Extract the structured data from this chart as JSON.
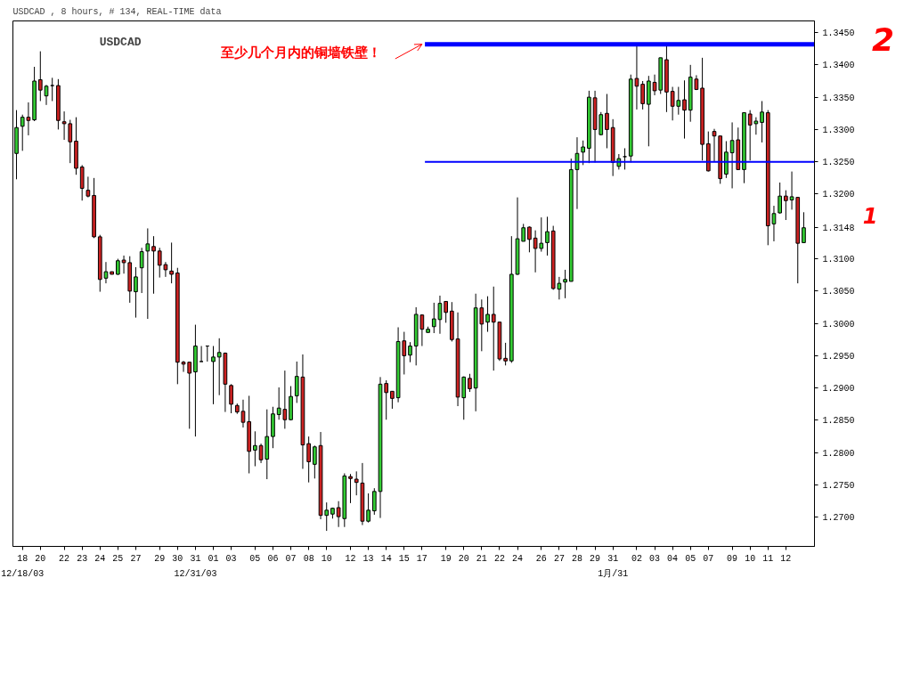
{
  "chart_data": {
    "type": "candlestick",
    "title": "USDCAD",
    "subtitle": "USDCAD , 8 hours, # 134, REAL-TIME data",
    "categories": [
      null,
      "18",
      null,
      null,
      "20",
      null,
      null,
      null,
      "22",
      null,
      null,
      "23",
      null,
      null,
      "24",
      null,
      null,
      "25",
      null,
      null,
      "27",
      null,
      null,
      null,
      "29",
      null,
      null,
      "30",
      null,
      null,
      "31",
      null,
      null,
      "01",
      null,
      null,
      "03",
      null,
      null,
      null,
      "05",
      null,
      null,
      "06",
      null,
      null,
      "07",
      null,
      null,
      "08",
      null,
      null,
      "10",
      null,
      null,
      null,
      "12",
      null,
      null,
      "13",
      null,
      null,
      "14",
      null,
      null,
      "15",
      null,
      null,
      "17",
      null,
      null,
      null,
      "19",
      null,
      null,
      "20",
      null,
      null,
      "21",
      null,
      null,
      "22",
      null,
      null,
      "24",
      null,
      null,
      null,
      "26",
      null,
      null,
      "27",
      null,
      null,
      "28",
      null,
      null,
      "29",
      null,
      null,
      "31",
      null,
      null,
      null,
      "02",
      null,
      null,
      "03",
      null,
      null,
      "04",
      null,
      null,
      "05",
      null,
      null,
      "07",
      null,
      null,
      null,
      "09",
      null,
      null,
      "10",
      null,
      null,
      "11",
      null,
      null,
      "12",
      null,
      null,
      null
    ],
    "ohlc": [
      [
        1.3263,
        1.333,
        1.3223,
        1.3303
      ],
      [
        1.3305,
        1.3323,
        1.3267,
        1.3319
      ],
      [
        1.3319,
        1.3342,
        1.3291,
        1.3314
      ],
      [
        1.3315,
        1.3397,
        1.3313,
        1.3375
      ],
      [
        1.3377,
        1.3421,
        1.3344,
        1.3361
      ],
      [
        1.3352,
        1.3369,
        1.3338,
        1.3367
      ],
      [
        1.3368,
        1.338,
        1.3344,
        1.3368
      ],
      [
        1.3368,
        1.3378,
        1.33,
        1.3314
      ],
      [
        1.3312,
        1.3328,
        1.3284,
        1.3309
      ],
      [
        1.3309,
        1.3315,
        1.3248,
        1.3281
      ],
      [
        1.3282,
        1.3319,
        1.323,
        1.324
      ],
      [
        1.3242,
        1.3245,
        1.319,
        1.3209
      ],
      [
        1.3206,
        1.3227,
        1.3195,
        1.3197
      ],
      [
        1.3198,
        1.3225,
        1.3132,
        1.3134
      ],
      [
        1.3134,
        1.3137,
        1.3049,
        1.3068
      ],
      [
        1.307,
        1.3095,
        1.3062,
        1.308
      ],
      [
        1.308,
        1.308,
        1.3076,
        1.3076
      ],
      [
        1.3076,
        1.31,
        1.3075,
        1.3097
      ],
      [
        1.3098,
        1.3105,
        1.3077,
        1.3094
      ],
      [
        1.3094,
        1.3104,
        1.3032,
        1.305
      ],
      [
        1.3049,
        1.3087,
        1.3009,
        1.3072
      ],
      [
        1.3086,
        1.3117,
        1.3047,
        1.3111
      ],
      [
        1.3112,
        1.3147,
        1.3007,
        1.3123
      ],
      [
        1.3119,
        1.3135,
        1.3046,
        1.3112
      ],
      [
        1.3112,
        1.3117,
        1.3071,
        1.309
      ],
      [
        1.3091,
        1.3095,
        1.3072,
        1.3083
      ],
      [
        1.3081,
        1.3125,
        1.3062,
        1.3076
      ],
      [
        1.3078,
        1.3086,
        1.2906,
        1.294
      ],
      [
        1.294,
        1.2942,
        1.2925,
        1.2937
      ],
      [
        1.294,
        1.294,
        1.2837,
        1.2923
      ],
      [
        1.2925,
        1.2998,
        1.2825,
        1.2965
      ],
      [
        1.2941,
        1.2965,
        1.2941,
        1.2941
      ],
      [
        1.2965,
        1.2965,
        1.2941,
        1.2965
      ],
      [
        1.2941,
        1.2965,
        1.2875,
        1.2948
      ],
      [
        1.2948,
        1.2977,
        1.2889,
        1.2955
      ],
      [
        1.2954,
        1.2955,
        1.2863,
        1.2906
      ],
      [
        1.2904,
        1.2906,
        1.2861,
        1.2875
      ],
      [
        1.2873,
        1.2876,
        1.286,
        1.2863
      ],
      [
        1.2864,
        1.2882,
        1.2839,
        1.2847
      ],
      [
        1.2848,
        1.2888,
        1.2768,
        1.2802
      ],
      [
        1.2804,
        1.2833,
        1.2779,
        1.2811
      ],
      [
        1.2811,
        1.2814,
        1.2784,
        1.2789
      ],
      [
        1.279,
        1.2867,
        1.2759,
        1.2825
      ],
      [
        1.2825,
        1.2871,
        1.2807,
        1.286
      ],
      [
        1.2859,
        1.2901,
        1.2851,
        1.2869
      ],
      [
        1.2867,
        1.2927,
        1.2837,
        1.2851
      ],
      [
        1.2851,
        1.2903,
        1.285,
        1.2887
      ],
      [
        1.2888,
        1.2941,
        1.2877,
        1.2918
      ],
      [
        1.2917,
        1.2952,
        1.2775,
        1.2812
      ],
      [
        1.2814,
        1.2825,
        1.2754,
        1.2786
      ],
      [
        1.2782,
        1.2811,
        1.276,
        1.2809
      ],
      [
        1.2811,
        1.2832,
        1.2697,
        1.2703
      ],
      [
        1.2703,
        1.2723,
        1.2679,
        1.2711
      ],
      [
        1.2705,
        1.2715,
        1.2698,
        1.2714
      ],
      [
        1.2715,
        1.2725,
        1.2685,
        1.2701
      ],
      [
        1.2698,
        1.2768,
        1.2685,
        1.2764
      ],
      [
        1.2763,
        1.2767,
        1.2722,
        1.276
      ],
      [
        1.2759,
        1.2771,
        1.2734,
        1.2754
      ],
      [
        1.2753,
        1.2784,
        1.2688,
        1.2694
      ],
      [
        1.2694,
        1.2737,
        1.2692,
        1.2711
      ],
      [
        1.271,
        1.2745,
        1.2704,
        1.274
      ],
      [
        1.274,
        1.2917,
        1.2699,
        1.2906
      ],
      [
        1.2907,
        1.2912,
        1.2851,
        1.2893
      ],
      [
        1.2895,
        1.2895,
        1.2868,
        1.2884
      ],
      [
        1.2885,
        1.2994,
        1.2878,
        1.2972
      ],
      [
        1.2973,
        1.2987,
        1.2921,
        1.295
      ],
      [
        1.2951,
        1.2971,
        1.294,
        1.2965
      ],
      [
        1.2965,
        1.3025,
        1.2935,
        1.3014
      ],
      [
        1.3013,
        1.3014,
        1.2965,
        1.2991
      ],
      [
        1.2986,
        1.2995,
        1.2986,
        1.2991
      ],
      [
        1.2995,
        1.3032,
        1.2985,
        1.3007
      ],
      [
        1.3006,
        1.3043,
        1.2984,
        1.3031
      ],
      [
        1.3034,
        1.3034,
        1.3001,
        1.3017
      ],
      [
        1.3019,
        1.3033,
        1.2972,
        1.2975
      ],
      [
        1.2976,
        1.3017,
        1.2872,
        1.2886
      ],
      [
        1.2885,
        1.2918,
        1.2851,
        1.2917
      ],
      [
        1.2915,
        1.2922,
        1.2894,
        1.2899
      ],
      [
        1.29,
        1.3046,
        1.2864,
        1.3024
      ],
      [
        1.3024,
        1.3037,
        1.2957,
        1.2999
      ],
      [
        1.3002,
        1.3042,
        1.2987,
        1.3014
      ],
      [
        1.3014,
        1.3057,
        1.2927,
        1.3002
      ],
      [
        1.3002,
        1.3002,
        1.2942,
        1.2945
      ],
      [
        1.2946,
        1.297,
        1.2935,
        1.2942
      ],
      [
        1.2942,
        1.3135,
        1.2939,
        1.3076
      ],
      [
        1.3076,
        1.3195,
        1.3075,
        1.3131
      ],
      [
        1.3127,
        1.3154,
        1.3127,
        1.3148
      ],
      [
        1.3149,
        1.315,
        1.311,
        1.313
      ],
      [
        1.3132,
        1.3144,
        1.3079,
        1.3116
      ],
      [
        1.3116,
        1.3164,
        1.3111,
        1.3124
      ],
      [
        1.3125,
        1.3165,
        1.3105,
        1.3142
      ],
      [
        1.3143,
        1.3151,
        1.3052,
        1.3054
      ],
      [
        1.3053,
        1.3072,
        1.3037,
        1.3062
      ],
      [
        1.3064,
        1.3083,
        1.3039,
        1.3068
      ],
      [
        1.3065,
        1.3255,
        1.3065,
        1.3238
      ],
      [
        1.3238,
        1.3288,
        1.3177,
        1.3263
      ],
      [
        1.3265,
        1.3283,
        1.3245,
        1.3273
      ],
      [
        1.3271,
        1.336,
        1.3248,
        1.335
      ],
      [
        1.3349,
        1.336,
        1.3249,
        1.33
      ],
      [
        1.3292,
        1.3327,
        1.3291,
        1.3323
      ],
      [
        1.3325,
        1.3355,
        1.3271,
        1.33
      ],
      [
        1.3303,
        1.3316,
        1.3228,
        1.3249
      ],
      [
        1.3243,
        1.3262,
        1.3238,
        1.3255
      ],
      [
        1.3258,
        1.3271,
        1.3238,
        1.3258
      ],
      [
        1.3259,
        1.3385,
        1.3249,
        1.3378
      ],
      [
        1.3379,
        1.3429,
        1.3331,
        1.3367
      ],
      [
        1.337,
        1.3375,
        1.3331,
        1.334
      ],
      [
        1.3339,
        1.3383,
        1.3274,
        1.3375
      ],
      [
        1.3373,
        1.3385,
        1.3353,
        1.336
      ],
      [
        1.3361,
        1.3411,
        1.3355,
        1.3411
      ],
      [
        1.3408,
        1.3429,
        1.3327,
        1.3358
      ],
      [
        1.3359,
        1.3366,
        1.3314,
        1.3336
      ],
      [
        1.3336,
        1.3366,
        1.3323,
        1.3345
      ],
      [
        1.3346,
        1.3376,
        1.3286,
        1.333
      ],
      [
        1.333,
        1.34,
        1.3312,
        1.3381
      ],
      [
        1.3378,
        1.3384,
        1.3361,
        1.3362
      ],
      [
        1.3364,
        1.3411,
        1.3252,
        1.3277
      ],
      [
        1.3278,
        1.3297,
        1.3235,
        1.3236
      ],
      [
        1.3297,
        1.3301,
        1.3251,
        1.329
      ],
      [
        1.329,
        1.329,
        1.3216,
        1.3224
      ],
      [
        1.3231,
        1.3282,
        1.3225,
        1.3265
      ],
      [
        1.3264,
        1.3311,
        1.3209,
        1.3283
      ],
      [
        1.3284,
        1.3303,
        1.3238,
        1.3238
      ],
      [
        1.3238,
        1.3326,
        1.3217,
        1.3326
      ],
      [
        1.3324,
        1.333,
        1.3252,
        1.3307
      ],
      [
        1.3309,
        1.3319,
        1.3292,
        1.3313
      ],
      [
        1.3311,
        1.3344,
        1.328,
        1.3327
      ],
      [
        1.3326,
        1.333,
        1.3121,
        1.3151
      ],
      [
        1.3154,
        1.3182,
        1.3127,
        1.317
      ],
      [
        1.3171,
        1.3218,
        1.317,
        1.3197
      ],
      [
        1.3197,
        1.3206,
        1.316,
        1.319
      ],
      [
        1.3191,
        1.3235,
        1.3176,
        1.3196
      ],
      [
        1.3195,
        1.3195,
        1.3062,
        1.3124
      ],
      [
        1.3125,
        1.3172,
        1.3125,
        1.3148
      ]
    ],
    "colors": [
      "#33cc33",
      "#33cc33",
      "#cc2222",
      "#33cc33",
      "#cc2222",
      "#33cc33",
      "#000000",
      "#cc2222",
      "#cc2222",
      "#cc2222",
      "#cc2222",
      "#cc2222",
      "#cc2222",
      "#cc2222",
      "#cc2222",
      "#33cc33",
      "#cc2222",
      "#33cc33",
      "#cc2222",
      "#cc2222",
      "#33cc33",
      "#33cc33",
      "#33cc33",
      "#cc2222",
      "#cc2222",
      "#cc2222",
      "#cc2222",
      "#cc2222",
      "#cc2222",
      "#cc2222",
      "#33cc33",
      "#000000",
      "#000000",
      "#33cc33",
      "#33cc33",
      "#cc2222",
      "#cc2222",
      "#cc2222",
      "#cc2222",
      "#cc2222",
      "#33cc33",
      "#cc2222",
      "#33cc33",
      "#33cc33",
      "#33cc33",
      "#cc2222",
      "#33cc33",
      "#33cc33",
      "#cc2222",
      "#cc2222",
      "#33cc33",
      "#cc2222",
      "#33cc33",
      "#33cc33",
      "#cc2222",
      "#33cc33",
      "#cc2222",
      "#cc2222",
      "#cc2222",
      "#33cc33",
      "#33cc33",
      "#33cc33",
      "#cc2222",
      "#cc2222",
      "#33cc33",
      "#cc2222",
      "#33cc33",
      "#33cc33",
      "#cc2222",
      "#33cc33",
      "#33cc33",
      "#33cc33",
      "#cc2222",
      "#cc2222",
      "#cc2222",
      "#33cc33",
      "#cc2222",
      "#33cc33",
      "#cc2222",
      "#33cc33",
      "#cc2222",
      "#cc2222",
      "#cc2222",
      "#33cc33",
      "#33cc33",
      "#33cc33",
      "#cc2222",
      "#cc2222",
      "#33cc33",
      "#33cc33",
      "#cc2222",
      "#33cc33",
      "#33cc33",
      "#33cc33",
      "#33cc33",
      "#33cc33",
      "#33cc33",
      "#cc2222",
      "#33cc33",
      "#cc2222",
      "#cc2222",
      "#33cc33",
      "#000000",
      "#33cc33",
      "#cc2222",
      "#cc2222",
      "#33cc33",
      "#cc2222",
      "#33cc33",
      "#cc2222",
      "#cc2222",
      "#33cc33",
      "#cc2222",
      "#33cc33",
      "#cc2222",
      "#cc2222",
      "#cc2222",
      "#cc2222",
      "#cc2222",
      "#33cc33",
      "#33cc33",
      "#cc2222",
      "#33cc33",
      "#cc2222",
      "#33cc33",
      "#33cc33",
      "#cc2222",
      "#33cc33",
      "#33cc33",
      "#cc2222",
      "#33cc33",
      "#cc2222",
      "#33cc33"
    ],
    "ylim": [
      1.2655,
      1.3468
    ],
    "yticks": [
      {
        "value": 1.27,
        "label": "1.2700"
      },
      {
        "value": 1.275,
        "label": "1.2750"
      },
      {
        "value": 1.28,
        "label": "1.2800"
      },
      {
        "value": 1.285,
        "label": "1.2850"
      },
      {
        "value": 1.29,
        "label": "1.2900"
      },
      {
        "value": 1.295,
        "label": "1.2950"
      },
      {
        "value": 1.3,
        "label": "1.3000"
      },
      {
        "value": 1.305,
        "label": "1.3050"
      },
      {
        "value": 1.31,
        "label": "1.3100"
      },
      {
        "value": 1.3148,
        "label": "1.3148"
      },
      {
        "value": 1.32,
        "label": "1.3200"
      },
      {
        "value": 1.325,
        "label": "1.3250"
      },
      {
        "value": 1.33,
        "label": "1.3300"
      },
      {
        "value": 1.335,
        "label": "1.3350"
      },
      {
        "value": 1.34,
        "label": "1.3400"
      },
      {
        "value": 1.345,
        "label": "1.3450"
      }
    ],
    "ref_lines": [
      {
        "axis": "y",
        "value": 1.3432,
        "color": "#0000ff"
      },
      {
        "axis": "y",
        "value": 1.325,
        "color": "#0000ff"
      }
    ],
    "annotations": [
      {
        "text": "至少几个月内的铜墙铁壁！",
        "x": "17",
        "y": 1.3432
      },
      "2",
      "1",
      "12/18/03",
      "12/31/03",
      "1月/31"
    ],
    "grid": false
  }
}
